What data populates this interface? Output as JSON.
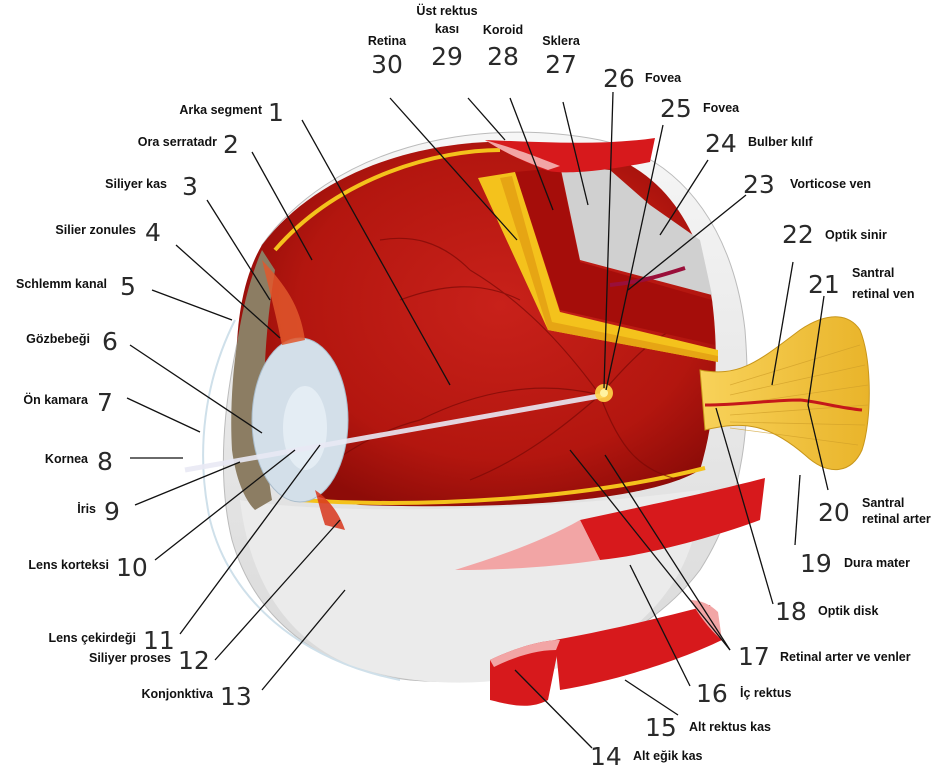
{
  "colors": {
    "sclera": "#eeeeee",
    "choroid": "#b81414",
    "retina_yellow": "#f4c21c",
    "muscle": "#d7191c",
    "muscle_light": "#f2a5a5",
    "optic_nerve": "#f5c542",
    "lens": "#d3dfe9",
    "iris": "#8c7d63",
    "label_text": "#111111",
    "number_text": "#2a2a2a"
  },
  "labels": [
    {
      "n": "1",
      "text": "Arka segment"
    },
    {
      "n": "2",
      "text": "Ora serratadr"
    },
    {
      "n": "3",
      "text": "Siliyer kas"
    },
    {
      "n": "4",
      "text": "Silier zonules"
    },
    {
      "n": "5",
      "text": "Schlemm kanal"
    },
    {
      "n": "6",
      "text": "Gözbebeği"
    },
    {
      "n": "7",
      "text": "Ön kamara"
    },
    {
      "n": "8",
      "text": "Kornea"
    },
    {
      "n": "9",
      "text": "İris"
    },
    {
      "n": "10",
      "text": "Lens korteksi"
    },
    {
      "n": "11",
      "text": "Lens çekirdeği"
    },
    {
      "n": "12",
      "text": "Siliyer proses"
    },
    {
      "n": "13",
      "text": "Konjonktiva"
    },
    {
      "n": "14",
      "text": "Alt eğik kas"
    },
    {
      "n": "15",
      "text": "Alt rektus kas"
    },
    {
      "n": "16",
      "text": "İç rektus"
    },
    {
      "n": "17",
      "text": "Retinal arter ve venler"
    },
    {
      "n": "18",
      "text": "Optik disk"
    },
    {
      "n": "19",
      "text": "Dura mater"
    },
    {
      "n": "20",
      "text": "Santral",
      "text2": "retinal arter"
    },
    {
      "n": "21",
      "text": "Santral",
      "text2": "retinal ven"
    },
    {
      "n": "22",
      "text": "Optik sinir"
    },
    {
      "n": "23",
      "text": "Vorticose ven"
    },
    {
      "n": "24",
      "text": "Bulber kılıf"
    },
    {
      "n": "25",
      "text": "Fovea"
    },
    {
      "n": "26",
      "text": "Fovea"
    },
    {
      "n": "27",
      "text": "Sklera"
    },
    {
      "n": "28",
      "text": "Koroid"
    },
    {
      "n": "29",
      "text": "Üst rektus",
      "text2": "kası"
    },
    {
      "n": "30",
      "text": "Retina"
    }
  ]
}
